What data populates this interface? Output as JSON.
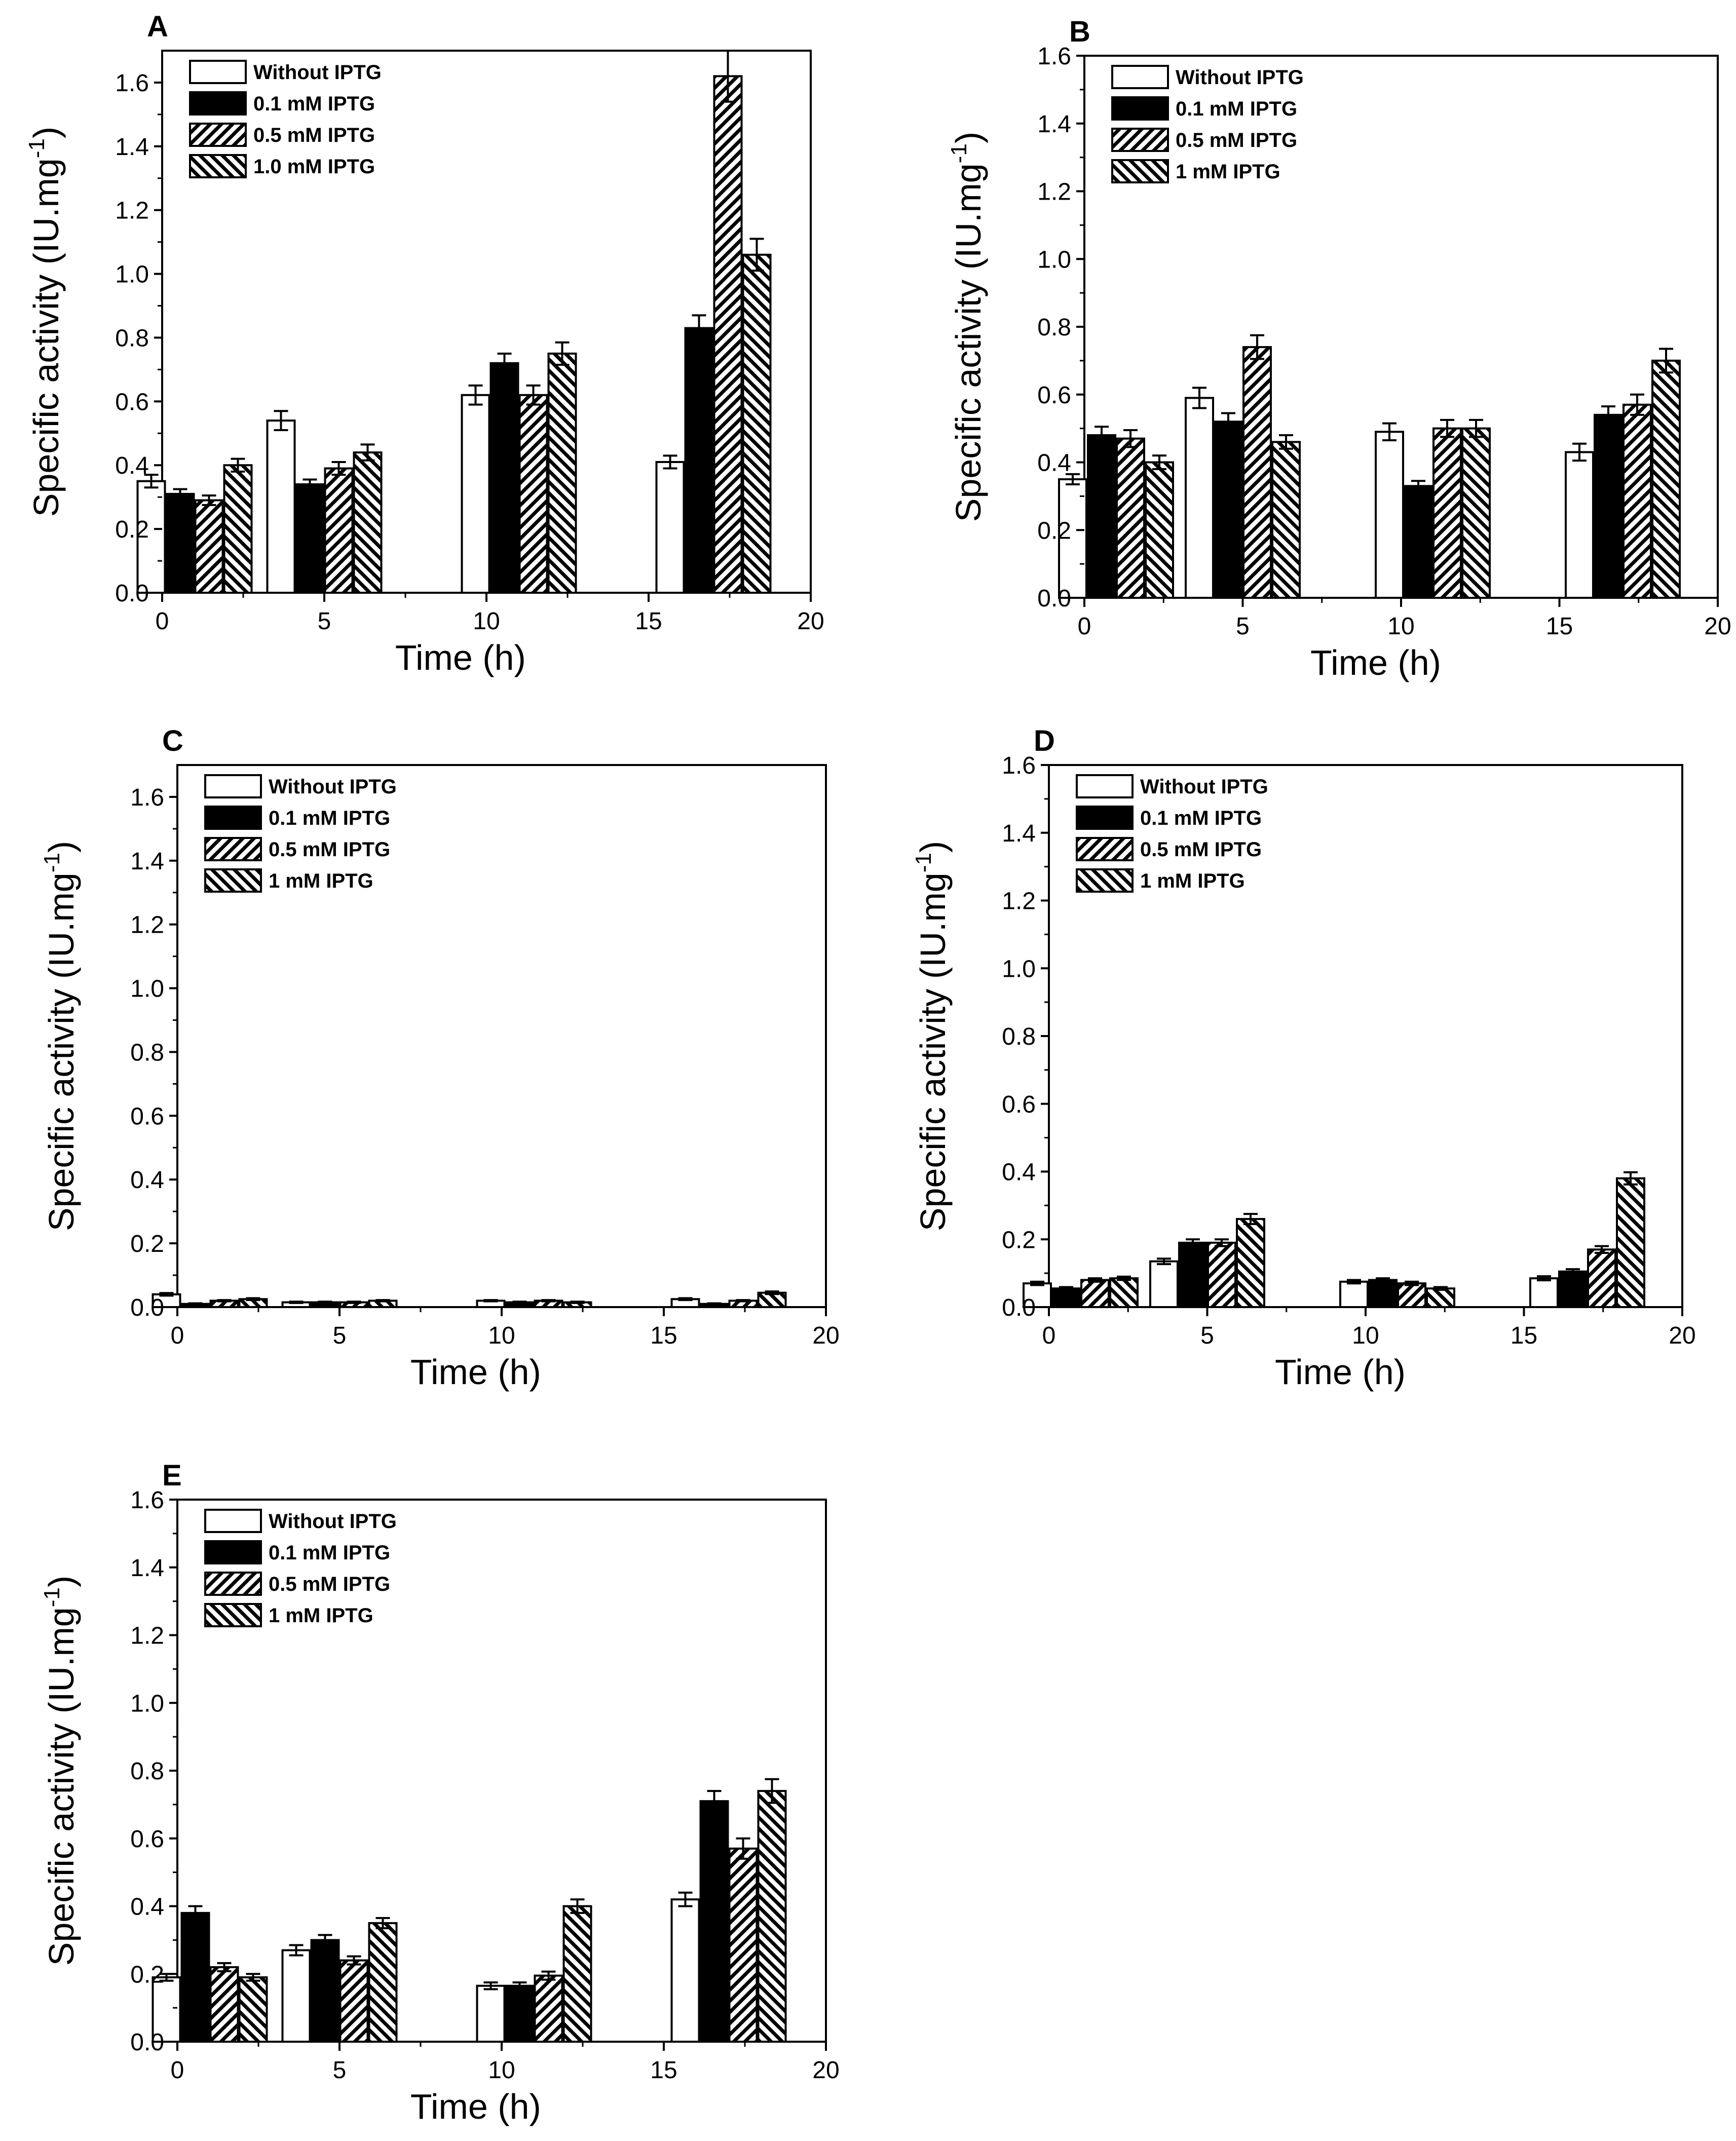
{
  "figure": {
    "panels": [
      "A",
      "B",
      "C",
      "D",
      "E"
    ]
  },
  "chart_data": [
    {
      "type": "bar",
      "panel_label": "A",
      "xlabel": "Time (h)",
      "ylabel": "Specific activity (IU.mg",
      "ylabel_superscript": "-1",
      "ylabel_close": ")",
      "xlim": [
        0,
        20
      ],
      "ylim": [
        0,
        1.7
      ],
      "xticks": [
        "0",
        "5",
        "10",
        "15",
        "20"
      ],
      "yticks": [
        "0.0",
        "0.2",
        "0.4",
        "0.6",
        "0.8",
        "1.0",
        "1.2",
        "1.4",
        "1.6"
      ],
      "legend_position": "top-left",
      "x": [
        1,
        5,
        11,
        17
      ],
      "series": [
        {
          "name": "Without IPTG",
          "pattern": "open",
          "values": [
            0.35,
            0.54,
            0.62,
            0.41
          ],
          "errors": [
            0.02,
            0.03,
            0.03,
            0.02
          ]
        },
        {
          "name": "0.1 mM IPTG",
          "pattern": "solid",
          "values": [
            0.31,
            0.34,
            0.72,
            0.83
          ],
          "errors": [
            0.015,
            0.015,
            0.03,
            0.04
          ]
        },
        {
          "name": "0.5 mM IPTG",
          "pattern": "hatch-right",
          "values": [
            0.29,
            0.39,
            0.62,
            1.62
          ],
          "errors": [
            0.015,
            0.02,
            0.03,
            0.08
          ]
        },
        {
          "name": "1.0 mM IPTG",
          "pattern": "hatch-left",
          "values": [
            0.4,
            0.44,
            0.75,
            1.06
          ],
          "errors": [
            0.02,
            0.025,
            0.035,
            0.05
          ]
        }
      ]
    },
    {
      "type": "bar",
      "panel_label": "B",
      "xlabel": "Time (h)",
      "ylabel": "Specific activity (IU.mg",
      "ylabel_superscript": "-1",
      "ylabel_close": ")",
      "xlim": [
        0,
        20
      ],
      "ylim": [
        0,
        1.6
      ],
      "xticks": [
        "0",
        "5",
        "10",
        "15",
        "20"
      ],
      "yticks": [
        "0.0",
        "0.2",
        "0.4",
        "0.6",
        "0.8",
        "1.0",
        "1.2",
        "1.4",
        "1.6"
      ],
      "legend_position": "top-left",
      "x": [
        1,
        5,
        11,
        17
      ],
      "series": [
        {
          "name": "Without IPTG",
          "pattern": "open",
          "values": [
            0.35,
            0.59,
            0.49,
            0.43
          ],
          "errors": [
            0.015,
            0.03,
            0.025,
            0.025
          ]
        },
        {
          "name": "0.1 mM IPTG",
          "pattern": "solid",
          "values": [
            0.48,
            0.52,
            0.33,
            0.54
          ],
          "errors": [
            0.025,
            0.025,
            0.015,
            0.025
          ]
        },
        {
          "name": "0.5 mM IPTG",
          "pattern": "hatch-right",
          "values": [
            0.47,
            0.74,
            0.5,
            0.57
          ],
          "errors": [
            0.025,
            0.035,
            0.025,
            0.03
          ]
        },
        {
          "name": "1 mM IPTG",
          "pattern": "hatch-left",
          "values": [
            0.4,
            0.46,
            0.5,
            0.7
          ],
          "errors": [
            0.02,
            0.02,
            0.025,
            0.035
          ]
        }
      ]
    },
    {
      "type": "bar",
      "panel_label": "C",
      "xlabel": "Time (h)",
      "ylabel": "Specific activity (IU.mg",
      "ylabel_superscript": "-1",
      "ylabel_close": ")",
      "xlim": [
        0,
        20
      ],
      "ylim": [
        0,
        1.7
      ],
      "xticks": [
        "0",
        "5",
        "10",
        "15",
        "20"
      ],
      "yticks": [
        "0.0",
        "0.2",
        "0.4",
        "0.6",
        "0.8",
        "1.0",
        "1.2",
        "1.4",
        "1.6"
      ],
      "legend_position": "top-left",
      "x": [
        1,
        5,
        11,
        17
      ],
      "series": [
        {
          "name": "Without IPTG",
          "pattern": "open",
          "values": [
            0.04,
            0.015,
            0.02,
            0.025
          ],
          "errors": [
            0.004,
            0.002,
            0.002,
            0.003
          ]
        },
        {
          "name": "0.1 mM IPTG",
          "pattern": "solid",
          "values": [
            0.01,
            0.015,
            0.015,
            0.01
          ],
          "errors": [
            0.002,
            0.002,
            0.002,
            0.002
          ]
        },
        {
          "name": "0.5 mM IPTG",
          "pattern": "hatch-right",
          "values": [
            0.02,
            0.015,
            0.02,
            0.02
          ],
          "errors": [
            0.002,
            0.002,
            0.002,
            0.002
          ]
        },
        {
          "name": "1 mM IPTG",
          "pattern": "hatch-left",
          "values": [
            0.025,
            0.02,
            0.015,
            0.045
          ],
          "errors": [
            0.003,
            0.002,
            0.002,
            0.004
          ]
        }
      ]
    },
    {
      "type": "bar",
      "panel_label": "D",
      "xlabel": "Time (h)",
      "ylabel": "Specific activity (IU.mg",
      "ylabel_superscript": "-1",
      "ylabel_close": ")",
      "xlim": [
        0,
        20
      ],
      "ylim": [
        0,
        1.6
      ],
      "xticks": [
        "0",
        "5",
        "10",
        "15",
        "20"
      ],
      "yticks": [
        "0.0",
        "0.2",
        "0.4",
        "0.6",
        "0.8",
        "1.0",
        "1.2",
        "1.4",
        "1.6"
      ],
      "legend_position": "top-left",
      "x": [
        1,
        5,
        11,
        17
      ],
      "series": [
        {
          "name": "Without IPTG",
          "pattern": "open",
          "values": [
            0.07,
            0.135,
            0.075,
            0.085
          ],
          "errors": [
            0.005,
            0.008,
            0.005,
            0.006
          ]
        },
        {
          "name": "0.1 mM IPTG",
          "pattern": "solid",
          "values": [
            0.055,
            0.19,
            0.08,
            0.105
          ],
          "errors": [
            0.004,
            0.01,
            0.005,
            0.007
          ]
        },
        {
          "name": "0.5 mM IPTG",
          "pattern": "hatch-right",
          "values": [
            0.08,
            0.19,
            0.07,
            0.17
          ],
          "errors": [
            0.005,
            0.01,
            0.005,
            0.01
          ]
        },
        {
          "name": "1 mM IPTG",
          "pattern": "hatch-left",
          "values": [
            0.085,
            0.26,
            0.055,
            0.38
          ],
          "errors": [
            0.005,
            0.015,
            0.004,
            0.018
          ]
        }
      ]
    },
    {
      "type": "bar",
      "panel_label": "E",
      "xlabel": "Time (h)",
      "ylabel": "Specific activity (IU.mg",
      "ylabel_superscript": "-1",
      "ylabel_close": ")",
      "xlim": [
        0,
        20
      ],
      "ylim": [
        0,
        1.6
      ],
      "xticks": [
        "0",
        "5",
        "10",
        "15",
        "20"
      ],
      "yticks": [
        "0.0",
        "0.2",
        "0.4",
        "0.6",
        "0.8",
        "1.0",
        "1.2",
        "1.4",
        "1.6"
      ],
      "legend_position": "top-left",
      "x": [
        1,
        5,
        11,
        17
      ],
      "series": [
        {
          "name": "Without IPTG",
          "pattern": "open",
          "values": [
            0.19,
            0.27,
            0.165,
            0.42
          ],
          "errors": [
            0.01,
            0.015,
            0.01,
            0.02
          ]
        },
        {
          "name": "0.1 mM IPTG",
          "pattern": "solid",
          "values": [
            0.38,
            0.3,
            0.165,
            0.71
          ],
          "errors": [
            0.02,
            0.015,
            0.01,
            0.03
          ]
        },
        {
          "name": "0.5 mM IPTG",
          "pattern": "hatch-right",
          "values": [
            0.22,
            0.24,
            0.195,
            0.57
          ],
          "errors": [
            0.012,
            0.012,
            0.012,
            0.03
          ]
        },
        {
          "name": "1 mM IPTG",
          "pattern": "hatch-left",
          "values": [
            0.19,
            0.35,
            0.4,
            0.74
          ],
          "errors": [
            0.01,
            0.015,
            0.02,
            0.035
          ]
        }
      ]
    }
  ]
}
